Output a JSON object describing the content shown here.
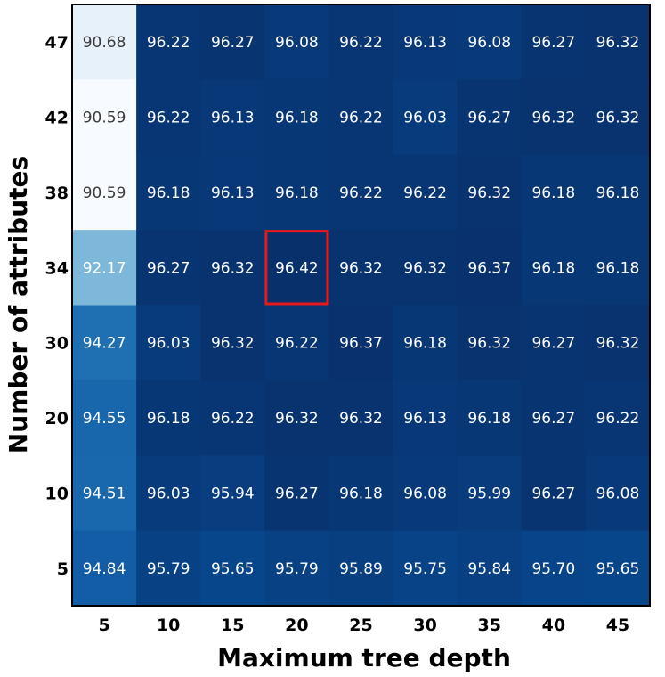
{
  "chart_data": {
    "type": "heatmap",
    "title": "",
    "xlabel": "Maximum tree depth",
    "ylabel": "Number of attributes",
    "x_categories": [
      "5",
      "10",
      "15",
      "20",
      "25",
      "30",
      "35",
      "40",
      "45"
    ],
    "y_categories": [
      "47",
      "42",
      "38",
      "34",
      "30",
      "20",
      "10",
      "5"
    ],
    "values": [
      [
        90.68,
        96.22,
        96.27,
        96.08,
        96.22,
        96.13,
        96.08,
        96.27,
        96.32
      ],
      [
        90.59,
        96.22,
        96.13,
        96.18,
        96.22,
        96.03,
        96.27,
        96.32,
        96.32
      ],
      [
        90.59,
        96.18,
        96.13,
        96.18,
        96.22,
        96.22,
        96.32,
        96.18,
        96.18
      ],
      [
        92.17,
        96.27,
        96.32,
        96.42,
        96.32,
        96.32,
        96.37,
        96.18,
        96.18
      ],
      [
        94.27,
        96.03,
        96.32,
        96.22,
        96.37,
        96.18,
        96.32,
        96.27,
        96.32
      ],
      [
        94.55,
        96.18,
        96.22,
        96.32,
        96.32,
        96.13,
        96.18,
        96.27,
        96.22
      ],
      [
        94.51,
        96.03,
        95.94,
        96.27,
        96.18,
        96.08,
        95.99,
        96.27,
        96.08
      ],
      [
        94.84,
        95.79,
        95.65,
        95.79,
        95.89,
        95.75,
        95.84,
        95.7,
        95.65
      ]
    ],
    "value_labels": [
      [
        "90.68",
        "96.22",
        "96.27",
        "96.08",
        "96.22",
        "96.13",
        "96.08",
        "96.27",
        "96.32"
      ],
      [
        "90.59",
        "96.22",
        "96.13",
        "96.18",
        "96.22",
        "96.03",
        "96.27",
        "96.32",
        "96.32"
      ],
      [
        "90.59",
        "96.18",
        "96.13",
        "96.18",
        "96.22",
        "96.22",
        "96.32",
        "96.18",
        "96.18"
      ],
      [
        "92.17",
        "96.27",
        "96.32",
        "96.42",
        "96.32",
        "96.32",
        "96.37",
        "96.18",
        "96.18"
      ],
      [
        "94.27",
        "96.03",
        "96.32",
        "96.22",
        "96.37",
        "96.18",
        "96.32",
        "96.27",
        "96.32"
      ],
      [
        "94.55",
        "96.18",
        "96.22",
        "96.32",
        "96.32",
        "96.13",
        "96.18",
        "96.27",
        "96.22"
      ],
      [
        "94.51",
        "96.03",
        "95.94",
        "96.27",
        "96.18",
        "96.08",
        "95.99",
        "96.27",
        "96.08"
      ],
      [
        "94.84",
        "95.79",
        "95.65",
        "95.79",
        "95.89",
        "95.75",
        "95.84",
        "95.70",
        "95.65"
      ]
    ],
    "highlight": {
      "row": 3,
      "col": 3
    },
    "colors": {
      "colormap": "Blues",
      "highlight_border": "#e8191c",
      "frame": "#000000",
      "dark_text": "#ffffff",
      "light_text": "#3a3a3a"
    },
    "legend": false,
    "grid": false
  }
}
